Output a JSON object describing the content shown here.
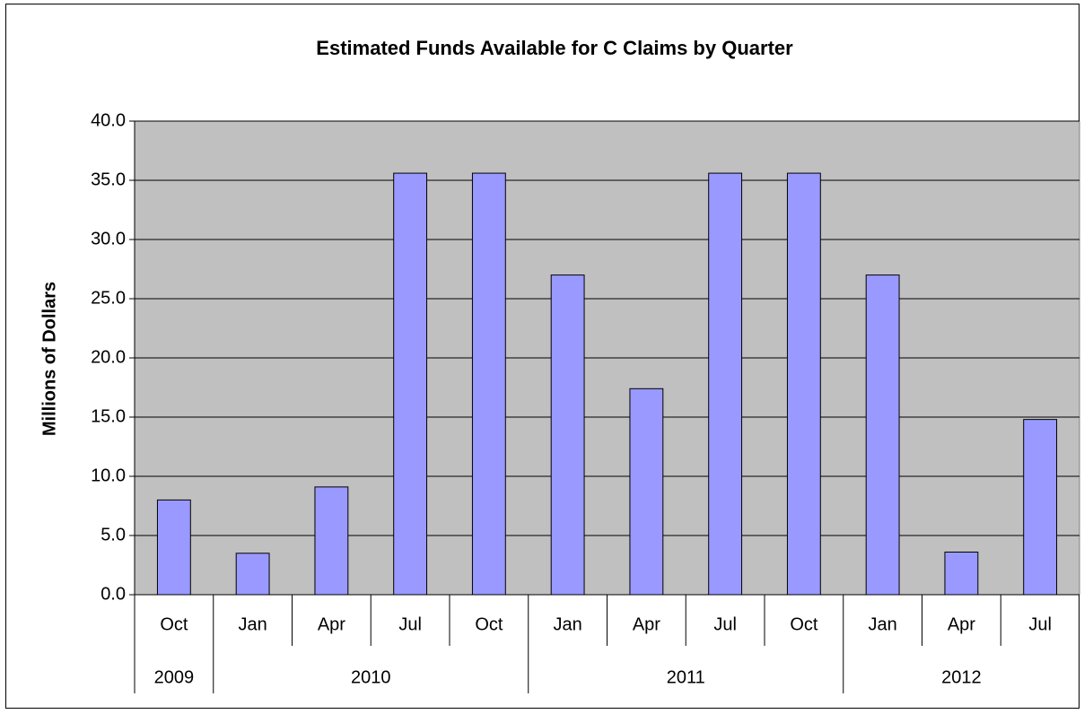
{
  "chart_data": {
    "type": "bar",
    "title": "Estimated Funds Available for C Claims by Quarter",
    "y_label": "Millions of Dollars",
    "category_groups": [
      {
        "name": "2009",
        "categories": [
          "Oct"
        ]
      },
      {
        "name": "2010",
        "categories": [
          "Jan",
          "Apr",
          "Jul",
          "Oct"
        ]
      },
      {
        "name": "2011",
        "categories": [
          "Jan",
          "Apr",
          "Jul",
          "Oct"
        ]
      },
      {
        "name": "2012",
        "categories": [
          "Jan",
          "Apr",
          "Jul"
        ]
      }
    ],
    "values": [
      8.0,
      3.5,
      9.1,
      35.6,
      35.6,
      27.0,
      17.4,
      35.6,
      35.6,
      27.0,
      3.6,
      14.8
    ],
    "color": "#9999ff",
    "plot_background": "#c0c0c0",
    "ylim": [
      0,
      40
    ],
    "yticks": [
      {
        "value": 0,
        "label": "0.0"
      },
      {
        "value": 5,
        "label": "5.0"
      },
      {
        "value": 10,
        "label": "10.0"
      },
      {
        "value": 15,
        "label": "15.0"
      },
      {
        "value": 20,
        "label": "20.0"
      },
      {
        "value": 25,
        "label": "25.0"
      },
      {
        "value": 30,
        "label": "30.0"
      },
      {
        "value": 35,
        "label": "35.0"
      },
      {
        "value": 40,
        "label": "40.0"
      }
    ],
    "grid": true
  }
}
